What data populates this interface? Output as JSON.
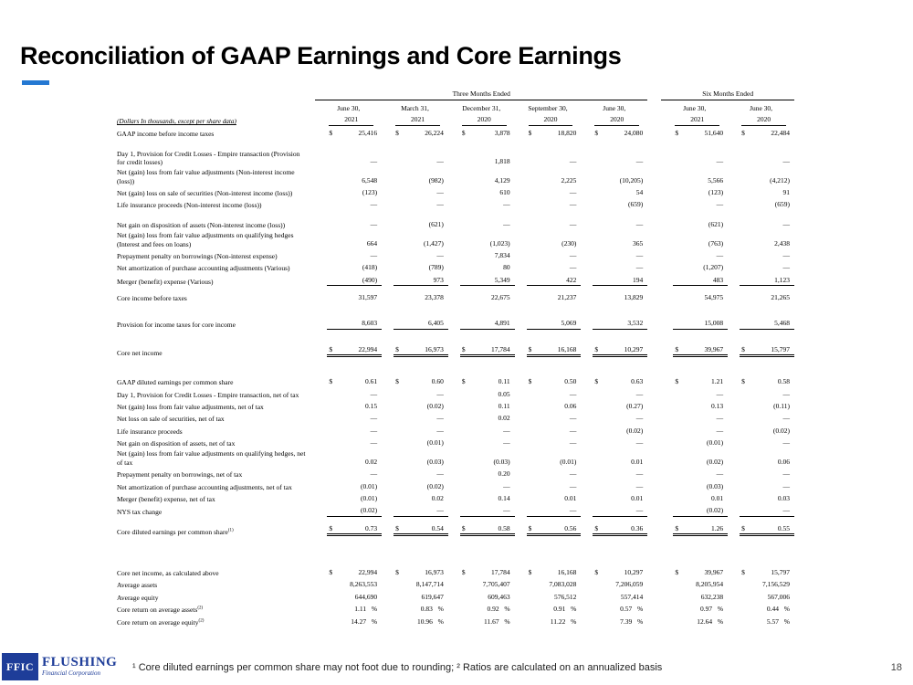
{
  "title": "Reconciliation of GAAP Earnings and Core Earnings",
  "accent_color": "#2478d2",
  "logo": {
    "abbr": "FFIC",
    "name": "FLUSHING",
    "subtitle": "Financial Corporation"
  },
  "footnote": "¹ Core diluted earnings per common share may not foot due to rounding; ² Ratios are calculated on an annualized basis",
  "page_number": "18",
  "table": {
    "units_note": "(Dollars In thousands, except per share data)",
    "group_headers": [
      {
        "label": "Three Months Ended",
        "span": 5
      },
      {
        "label": "Six Months Ended",
        "span": 2
      }
    ],
    "col_headers": [
      {
        "line1": "June 30,",
        "line2": "2021"
      },
      {
        "line1": "March 31,",
        "line2": "2021"
      },
      {
        "line1": "December 31,",
        "line2": "2020"
      },
      {
        "line1": "September 30,",
        "line2": "2020"
      },
      {
        "line1": "June 30,",
        "line2": "2020"
      },
      {
        "line1": "June 30,",
        "line2": "2021"
      },
      {
        "line1": "June 30,",
        "line2": "2020"
      }
    ],
    "rows": [
      {
        "type": "row",
        "label": "GAAP income before income taxes",
        "dollar": true,
        "values": [
          "25,416",
          "26,224",
          "3,878",
          "18,820",
          "24,080",
          "51,640",
          "22,484"
        ]
      },
      {
        "type": "gap",
        "h": 8
      },
      {
        "type": "row",
        "label": "Day 1, Provision for Credit Losses - Empire transaction (Provision for credit losses)",
        "values": [
          "—",
          "—",
          "1,818",
          "—",
          "—",
          "—",
          "—"
        ]
      },
      {
        "type": "row",
        "label": "Net (gain) loss from fair value adjustments (Non-interest income (loss))",
        "values": [
          "6,548",
          "(982)",
          "4,129",
          "2,225",
          "(10,205)",
          "5,566",
          "(4,212)"
        ]
      },
      {
        "type": "row",
        "label": "Net (gain) loss on sale of securities (Non-interest income (loss))",
        "values": [
          "(123)",
          "—",
          "610",
          "—",
          "54",
          "(123)",
          "91"
        ]
      },
      {
        "type": "row",
        "label": "Life insurance proceeds (Non-interest income (loss))",
        "values": [
          "—",
          "—",
          "—",
          "—",
          "(659)",
          "—",
          "(659)"
        ]
      },
      {
        "type": "gap",
        "h": 6
      },
      {
        "type": "row",
        "label": "Net gain on disposition of assets (Non-interest income (loss))",
        "values": [
          "—",
          "(621)",
          "—",
          "—",
          "—",
          "(621)",
          "—"
        ]
      },
      {
        "type": "row",
        "label": "Net (gain) loss from fair value adjustments on qualifying hedges (Interest and fees on loans)",
        "values": [
          "664",
          "(1,427)",
          "(1,023)",
          "(230)",
          "365",
          "(763)",
          "2,438"
        ]
      },
      {
        "type": "row",
        "label": "Prepayment penalty on borrowings (Non-interest expense)",
        "values": [
          "—",
          "—",
          "7,834",
          "—",
          "—",
          "—",
          "—"
        ]
      },
      {
        "type": "row",
        "label": "Net amortization of purchase accounting adjustments (Various)",
        "values": [
          "(418)",
          "(789)",
          "80",
          "—",
          "—",
          "(1,207)",
          "—"
        ]
      },
      {
        "type": "row",
        "label": "Merger (benefit) expense (Various)",
        "rule": "single",
        "values": [
          "(490)",
          "973",
          "5,349",
          "422",
          "194",
          "483",
          "1,123"
        ]
      },
      {
        "type": "gap",
        "h": 3
      },
      {
        "type": "row",
        "label": "Core income before taxes",
        "values": [
          "31,597",
          "23,378",
          "22,675",
          "21,237",
          "13,829",
          "54,975",
          "21,265"
        ]
      },
      {
        "type": "gap",
        "h": 13
      },
      {
        "type": "row",
        "label": "Provision for income taxes for core income",
        "rule": "single",
        "values": [
          "8,603",
          "6,405",
          "4,891",
          "5,069",
          "3,532",
          "15,008",
          "5,468"
        ]
      },
      {
        "type": "gap",
        "h": 12
      },
      {
        "type": "row",
        "label": "Core net income",
        "dollar": true,
        "rule": "double",
        "values": [
          "22,994",
          "16,973",
          "17,784",
          "16,168",
          "10,297",
          "39,967",
          "15,797"
        ]
      },
      {
        "type": "gap",
        "h": 17
      },
      {
        "type": "row",
        "label": "GAAP diluted earnings per common share",
        "dollar": true,
        "values": [
          "0.61",
          "0.60",
          "0.11",
          "0.50",
          "0.63",
          "1.21",
          "0.58"
        ]
      },
      {
        "type": "row",
        "label": "Day 1, Provision for Credit Losses - Empire transaction, net of tax",
        "values": [
          "—",
          "—",
          "0.05",
          "—",
          "—",
          "—",
          "—"
        ]
      },
      {
        "type": "row",
        "label": "Net (gain) loss from fair value adjustments, net of tax",
        "values": [
          "0.15",
          "(0.02)",
          "0.11",
          "0.06",
          "(0.27)",
          "0.13",
          "(0.11)"
        ]
      },
      {
        "type": "row",
        "label": "Net loss on sale of securities, net of tax",
        "values": [
          "—",
          "—",
          "0.02",
          "—",
          "—",
          "—",
          "—"
        ]
      },
      {
        "type": "row",
        "label": "Life insurance proceeds",
        "values": [
          "—",
          "—",
          "—",
          "—",
          "(0.02)",
          "—",
          "(0.02)"
        ]
      },
      {
        "type": "row",
        "label": "Net gain on disposition of assets, net of tax",
        "values": [
          "—",
          "(0.01)",
          "—",
          "—",
          "—",
          "(0.01)",
          "—"
        ]
      },
      {
        "type": "row",
        "label": "Net (gain) loss from fair value adjustments on qualifying hedges, net of tax",
        "values": [
          "0.02",
          "(0.03)",
          "(0.03)",
          "(0.01)",
          "0.01",
          "(0.02)",
          "0.06"
        ]
      },
      {
        "type": "row",
        "label": "Prepayment penalty on borrowings, net of tax",
        "values": [
          "—",
          "—",
          "0.20",
          "—",
          "—",
          "—",
          "—"
        ]
      },
      {
        "type": "row",
        "label": "Net amortization of purchase accounting adjustments, net of tax",
        "values": [
          "(0.01)",
          "(0.02)",
          "—",
          "—",
          "—",
          "(0.03)",
          "—"
        ]
      },
      {
        "type": "row",
        "label": "Merger (benefit) expense, net of tax",
        "values": [
          "(0.01)",
          "0.02",
          "0.14",
          "0.01",
          "0.01",
          "0.01",
          "0.03"
        ]
      },
      {
        "type": "row",
        "label": "NYS tax change",
        "rule": "single",
        "values": [
          "(0.02)",
          "—",
          "—",
          "—",
          "—",
          "(0.02)",
          "—"
        ]
      },
      {
        "type": "gap",
        "h": 3
      },
      {
        "type": "row",
        "label": "Core diluted earnings per common share",
        "sup": "(1)",
        "dollar": true,
        "rule": "double",
        "values": [
          "0.73",
          "0.54",
          "0.58",
          "0.56",
          "0.36",
          "1.26",
          "0.55"
        ]
      },
      {
        "type": "gap",
        "h": 30
      },
      {
        "type": "row",
        "label": "Core net income, as calculated above",
        "dollar": true,
        "values": [
          "22,994",
          "16,973",
          "17,784",
          "16,168",
          "10,297",
          "39,967",
          "15,797"
        ]
      },
      {
        "type": "row",
        "label": "Average assets",
        "values": [
          "8,263,553",
          "8,147,714",
          "7,705,407",
          "7,083,028",
          "7,206,059",
          "8,205,954",
          "7,156,529"
        ]
      },
      {
        "type": "row",
        "label": "Average equity",
        "values": [
          "644,690",
          "619,647",
          "609,463",
          "576,512",
          "557,414",
          "632,238",
          "567,006"
        ]
      },
      {
        "type": "row",
        "label": "Core return on average assets",
        "sup": "(2)",
        "percent": true,
        "values": [
          "1.11",
          "0.83",
          "0.92",
          "0.91",
          "0.57",
          "0.97",
          "0.44"
        ]
      },
      {
        "type": "row",
        "label": "Core return on average equity",
        "sup": "(2)",
        "percent": true,
        "values": [
          "14.27",
          "10.96",
          "11.67",
          "11.22",
          "7.39",
          "12.64",
          "5.57"
        ]
      }
    ]
  }
}
